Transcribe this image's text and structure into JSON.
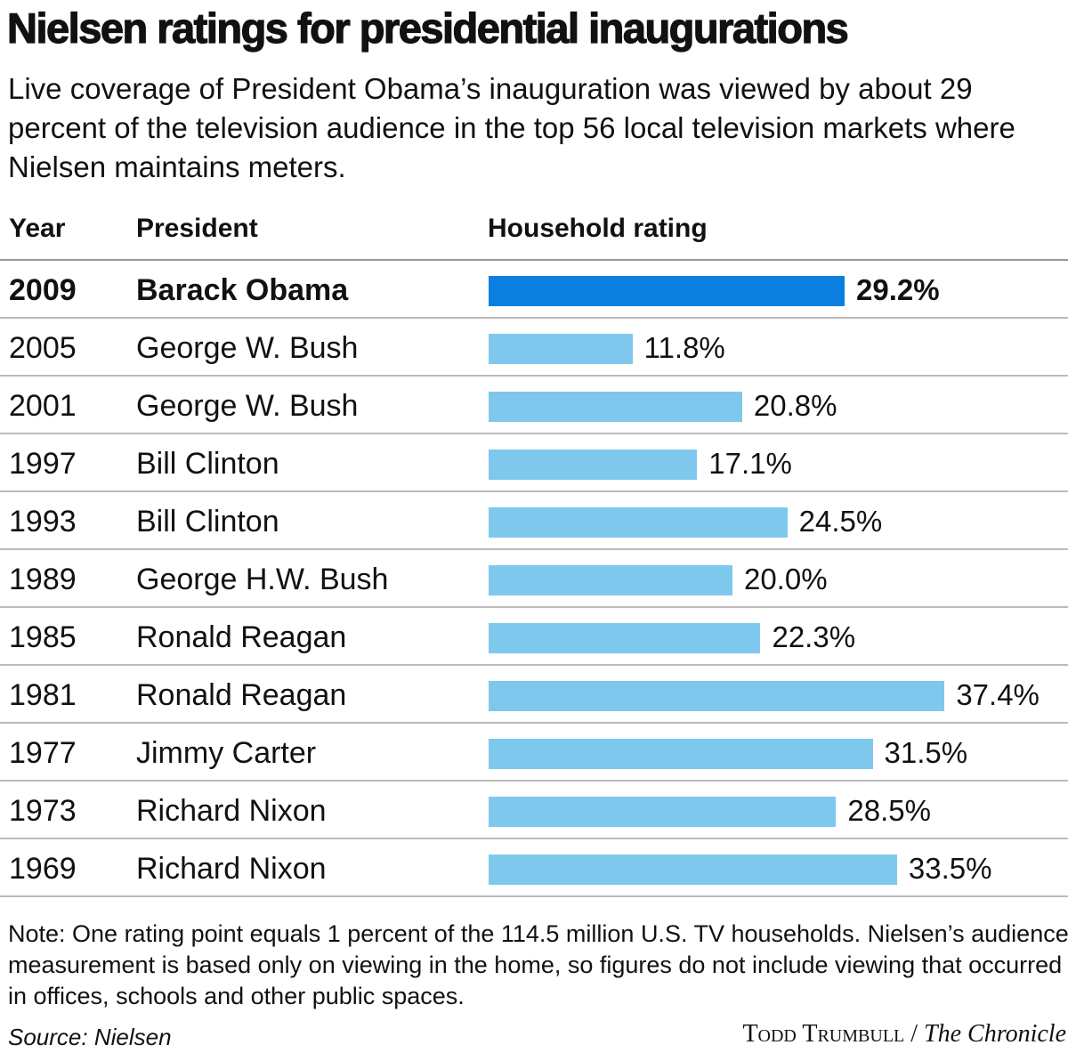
{
  "chart_data": {
    "type": "bar",
    "orientation": "horizontal",
    "title": "Nielsen ratings for presidential inaugurations",
    "subtitle": "Live coverage of President Obama’s inauguration was viewed by about 29 percent of the television audience in the top 56 local television markets where Nielsen maintains meters.",
    "columns": {
      "year": "Year",
      "president": "President",
      "rating": "Household rating"
    },
    "rows": [
      {
        "year": "2009",
        "president": "Barack Obama",
        "value": 29.2,
        "label": "29.2%",
        "highlight": true
      },
      {
        "year": "2005",
        "president": "George W. Bush",
        "value": 11.8,
        "label": "11.8%"
      },
      {
        "year": "2001",
        "president": "George W. Bush",
        "value": 20.8,
        "label": "20.8%"
      },
      {
        "year": "1997",
        "president": "Bill Clinton",
        "value": 17.1,
        "label": "17.1%"
      },
      {
        "year": "1993",
        "president": "Bill Clinton",
        "value": 24.5,
        "label": "24.5%"
      },
      {
        "year": "1989",
        "president": "George H.W. Bush",
        "value": 20.0,
        "label": "20.0%"
      },
      {
        "year": "1985",
        "president": "Ronald Reagan",
        "value": 22.3,
        "label": "22.3%"
      },
      {
        "year": "1981",
        "president": "Ronald Reagan",
        "value": 37.4,
        "label": "37.4%"
      },
      {
        "year": "1977",
        "president": "Jimmy Carter",
        "value": 31.5,
        "label": "31.5%"
      },
      {
        "year": "1973",
        "president": "Richard Nixon",
        "value": 28.5,
        "label": "28.5%"
      },
      {
        "year": "1969",
        "president": "Richard Nixon",
        "value": 33.5,
        "label": "33.5%"
      }
    ],
    "colors": {
      "highlight": "#0a7fe0",
      "default": "#7ec8ee"
    },
    "note": "Note: One rating point equals 1 percent of the 114.5 million U.S. TV households. Nielsen’s audience measurement is based only on viewing in the home, so figures do not include viewing that occurred in offices, schools and other public spaces.",
    "source": "Source: Nielsen",
    "credit": {
      "name": "Todd Trumbull",
      "separator": " / ",
      "publication": "The Chronicle"
    }
  }
}
